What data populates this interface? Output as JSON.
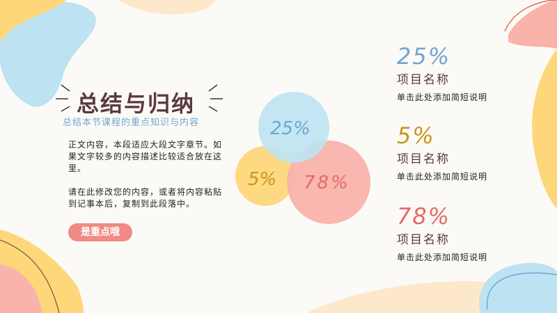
{
  "title": "总结与归纳",
  "subtitle": "总结本节课程的重点知识与内容",
  "body": {
    "paragraphs": [
      "正文内容，本段适应大段文字章节。如果文字较多的内容描述比较适合放在这里。",
      "请在此修改您的内容，或者将内容粘贴到记事本后，复制到此段落中。"
    ]
  },
  "button_label": "是重点哦",
  "circles": [
    {
      "label": "25%",
      "fill": "#BDE3F2",
      "text_color": "#6FA6D1"
    },
    {
      "label": "5%",
      "fill": "#FDD77A",
      "text_color": "#C9951E"
    },
    {
      "label": "78%",
      "fill": "#F9B3AB",
      "text_color": "#E46A63"
    }
  ],
  "items": [
    {
      "percent": "25%",
      "name": "项目名称",
      "desc": "单击此处添加简短说明",
      "color": "#6FA6D1"
    },
    {
      "percent": "5%",
      "name": "项目名称",
      "desc": "单击此处添加简短说明",
      "color": "#C9951E"
    },
    {
      "percent": "78%",
      "name": "项目名称",
      "desc": "单击此处添加简短说明",
      "color": "#E46A63"
    }
  ],
  "colors": {
    "blue": "#BDE3F2",
    "yellow": "#FDD77A",
    "pink": "#F9B3AB",
    "peach": "#FDE8CC",
    "title": "#5B3A3E"
  }
}
